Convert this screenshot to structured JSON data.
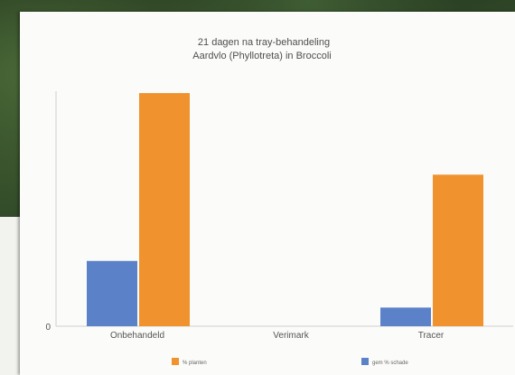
{
  "chart_data": {
    "type": "bar",
    "title_lines": [
      "21 dagen na tray-behandeling",
      "Aardvlo (Phyllotreta) in Broccoli"
    ],
    "categories": [
      "Onbehandeld",
      "Verimark",
      "Tracer"
    ],
    "series": [
      {
        "name": "% planten",
        "color": "#f0922d",
        "values": [
          100,
          0,
          65
        ]
      },
      {
        "name": "gem % schade",
        "color": "#5b82c9",
        "values": [
          28,
          0,
          8
        ]
      }
    ],
    "y_tick_labels": [
      "0"
    ],
    "ylim": [
      0,
      100
    ],
    "grid": false,
    "legend_position": "bottom"
  }
}
